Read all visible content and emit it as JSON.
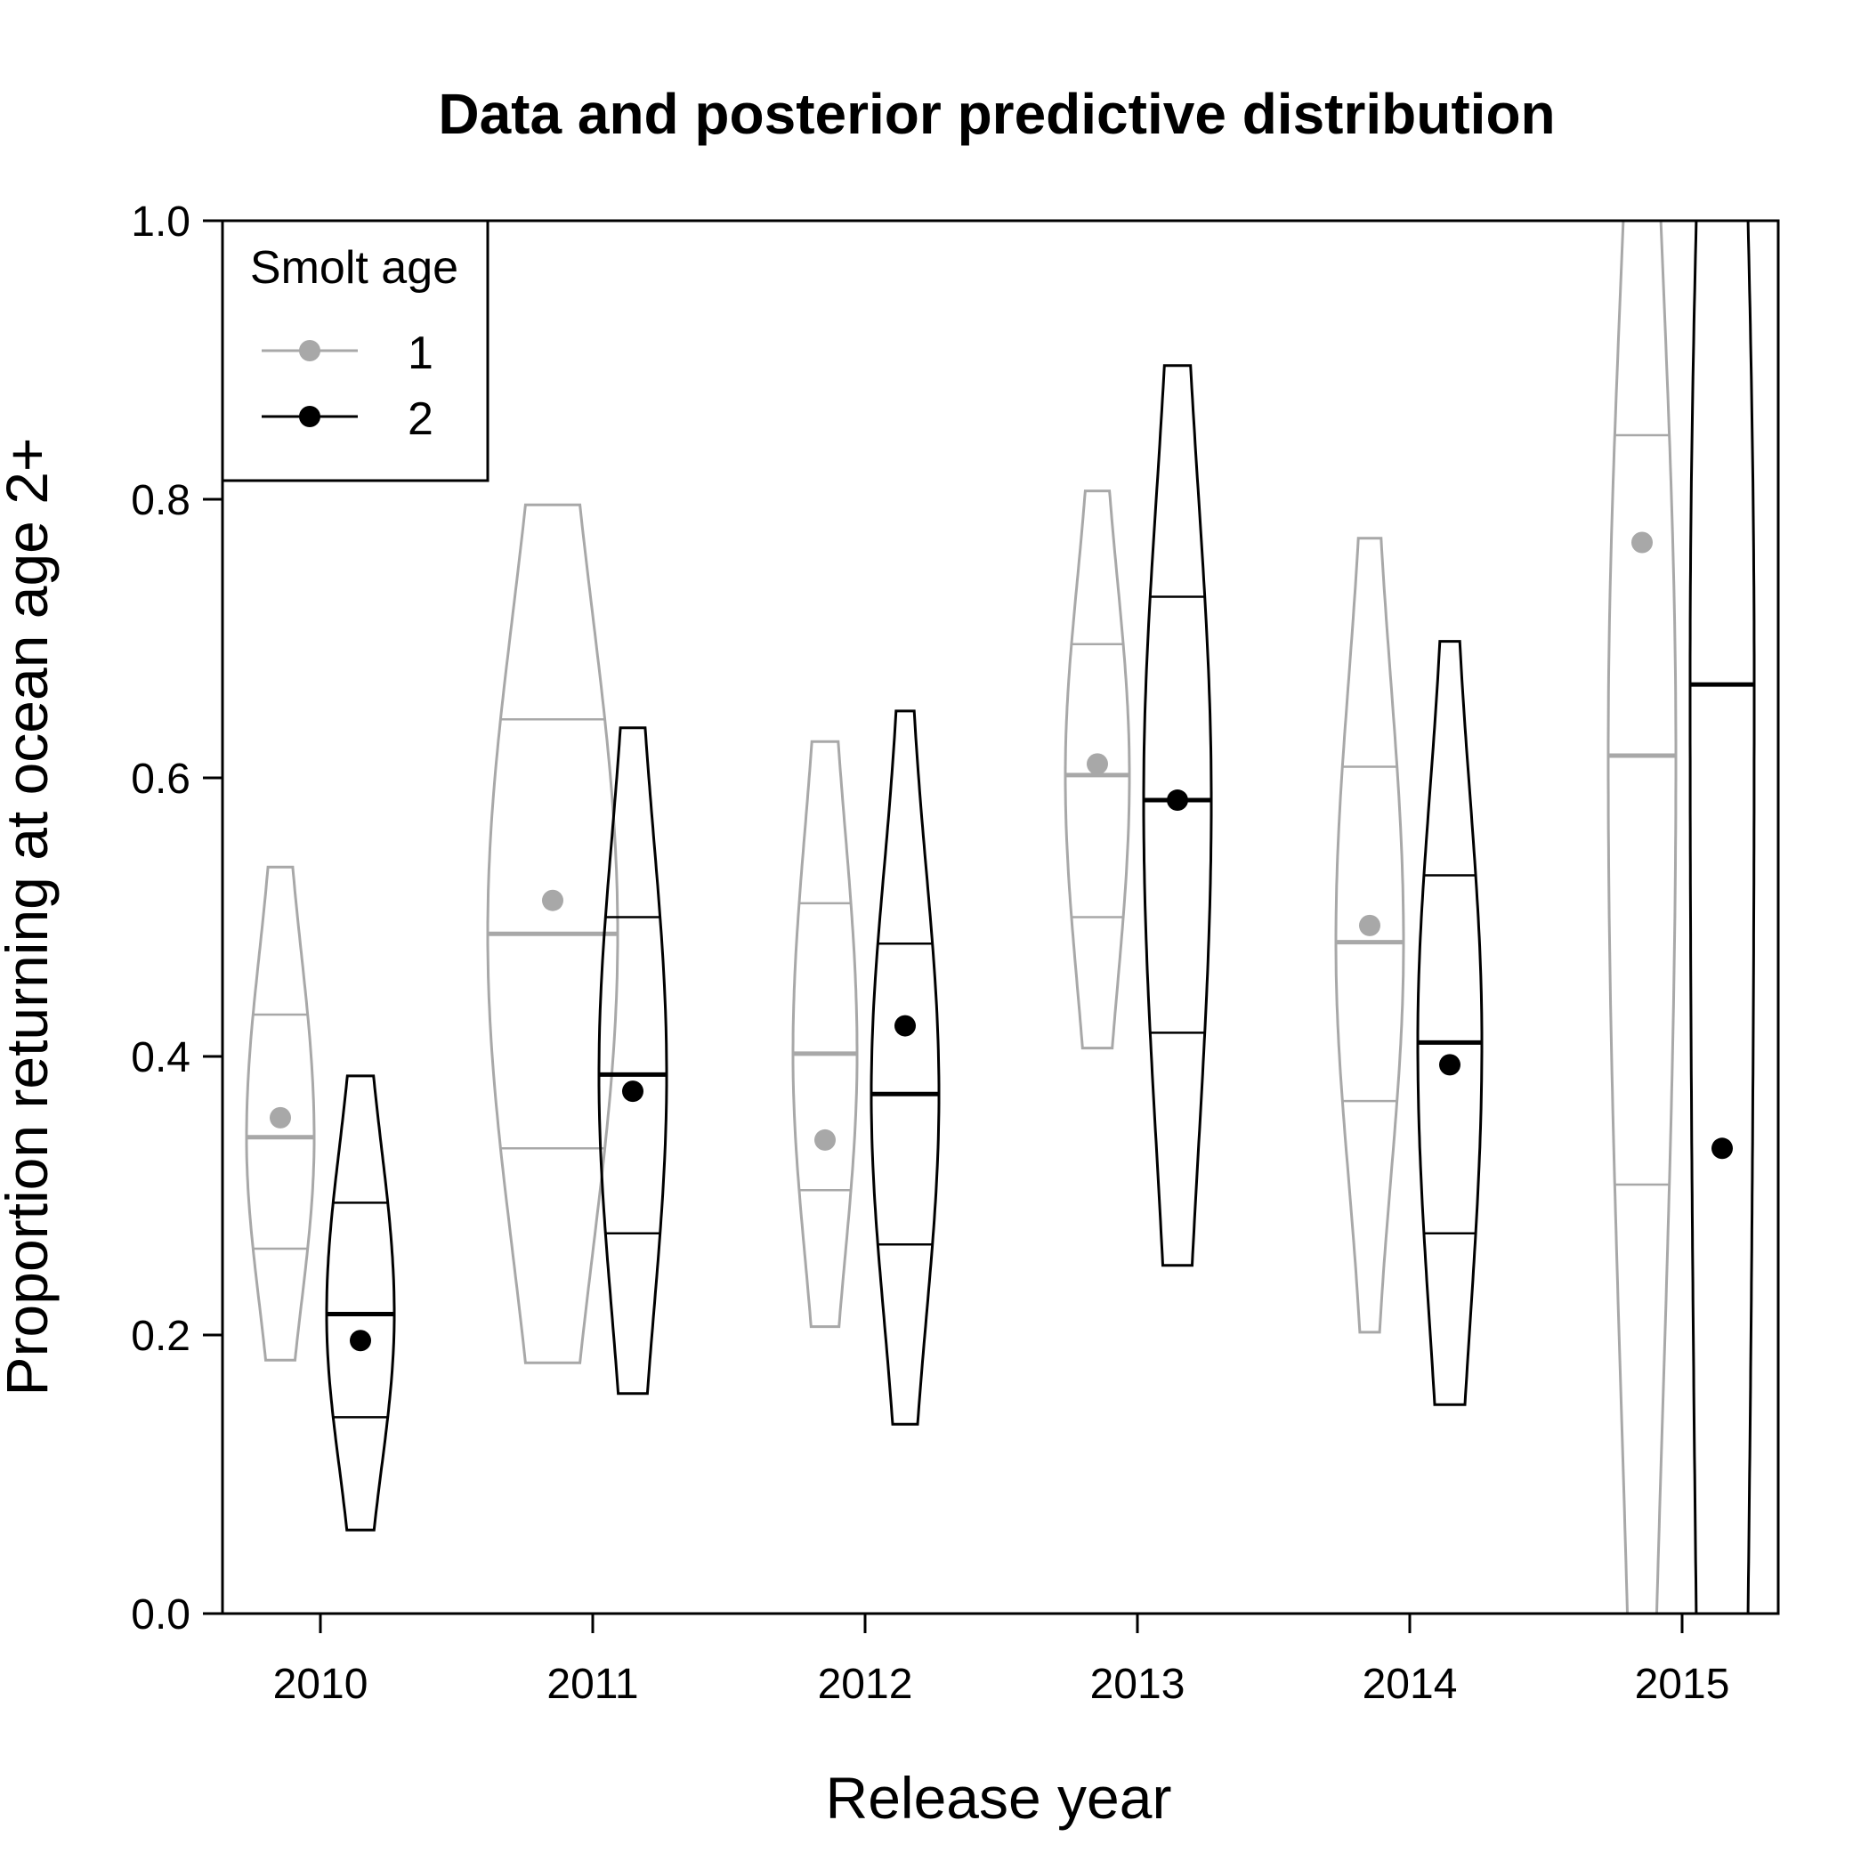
{
  "chart_data": {
    "type": "violin",
    "title": "Data and posterior predictive distribution",
    "xlabel": "Release year",
    "ylabel": "Proportion returning at ocean age 2+",
    "categories": [
      "2010",
      "2011",
      "2012",
      "2013",
      "2014",
      "2015"
    ],
    "ylim": [
      0,
      1
    ],
    "yticks": [
      "0.0",
      "0.2",
      "0.4",
      "0.6",
      "0.8",
      "1.0"
    ],
    "legend": {
      "title": "Smolt age",
      "position": "top-left",
      "entries": [
        {
          "label": "1",
          "color": "#a8a8a8"
        },
        {
          "label": "2",
          "color": "#000000"
        }
      ]
    },
    "series": [
      {
        "name": "1",
        "color": "#a8a8a8",
        "observed": [
          0.356,
          0.512,
          0.34,
          0.61,
          0.494,
          0.769
        ],
        "median": [
          0.342,
          0.488,
          0.402,
          0.602,
          0.482,
          0.616
        ],
        "lower_quartile": [
          0.262,
          0.334,
          0.304,
          0.5,
          0.368,
          0.308
        ],
        "upper_quartile": [
          0.43,
          0.642,
          0.51,
          0.696,
          0.608,
          0.846
        ],
        "min": [
          0.182,
          0.18,
          0.206,
          0.406,
          0.202,
          0.0
        ],
        "max": [
          0.536,
          0.796,
          0.626,
          0.806,
          0.772,
          1.0
        ]
      },
      {
        "name": "2",
        "color": "#000000",
        "observed": [
          0.196,
          0.375,
          0.422,
          0.584,
          0.394,
          0.334
        ],
        "median": [
          0.215,
          0.387,
          0.373,
          0.584,
          0.41,
          0.667
        ],
        "lower_quartile": [
          0.141,
          0.273,
          0.265,
          0.417,
          0.273,
          0.0
        ],
        "upper_quartile": [
          0.295,
          0.5,
          0.481,
          0.73,
          0.53,
          1.0
        ],
        "min": [
          0.06,
          0.158,
          0.136,
          0.25,
          0.15,
          0.0
        ],
        "max": [
          0.386,
          0.636,
          0.648,
          0.896,
          0.698,
          1.0
        ]
      }
    ]
  }
}
